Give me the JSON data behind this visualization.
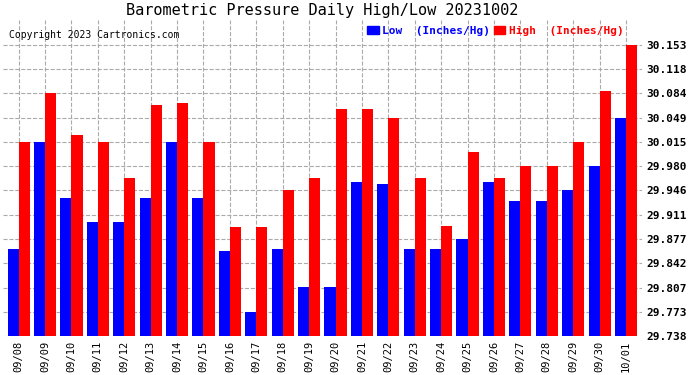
{
  "title": "Barometric Pressure Daily High/Low 20231002",
  "copyright": "Copyright 2023 Cartronics.com",
  "legend_low": "Low  (Inches/Hg)",
  "legend_high": "High  (Inches/Hg)",
  "categories": [
    "09/08",
    "09/09",
    "09/10",
    "09/11",
    "09/12",
    "09/13",
    "09/14",
    "09/15",
    "09/16",
    "09/17",
    "09/18",
    "09/19",
    "09/20",
    "09/21",
    "09/22",
    "09/23",
    "09/24",
    "09/25",
    "09/26",
    "09/27",
    "09/28",
    "09/29",
    "09/30",
    "10/01"
  ],
  "high_values": [
    30.015,
    30.084,
    30.025,
    30.015,
    29.963,
    30.068,
    30.07,
    30.015,
    29.893,
    29.893,
    29.946,
    29.963,
    30.062,
    30.062,
    30.049,
    29.963,
    29.895,
    30.0,
    29.963,
    29.98,
    29.98,
    30.015,
    30.088,
    30.153
  ],
  "low_values": [
    29.862,
    30.015,
    29.935,
    29.9,
    29.9,
    29.935,
    30.015,
    29.935,
    29.86,
    29.773,
    29.862,
    29.808,
    29.808,
    29.958,
    29.955,
    29.862,
    29.862,
    29.877,
    29.958,
    29.93,
    29.93,
    29.946,
    29.98,
    30.049
  ],
  "ylim_min": 29.738,
  "ylim_max": 30.188,
  "yticks": [
    29.738,
    29.773,
    29.807,
    29.842,
    29.877,
    29.911,
    29.946,
    29.98,
    30.015,
    30.049,
    30.084,
    30.118,
    30.153
  ],
  "bar_width": 0.42,
  "low_color": "#0000ff",
  "high_color": "#ff0000",
  "bg_color": "#ffffff",
  "grid_color": "#aaaaaa",
  "title_color": "#000000",
  "copyright_color": "#000000"
}
